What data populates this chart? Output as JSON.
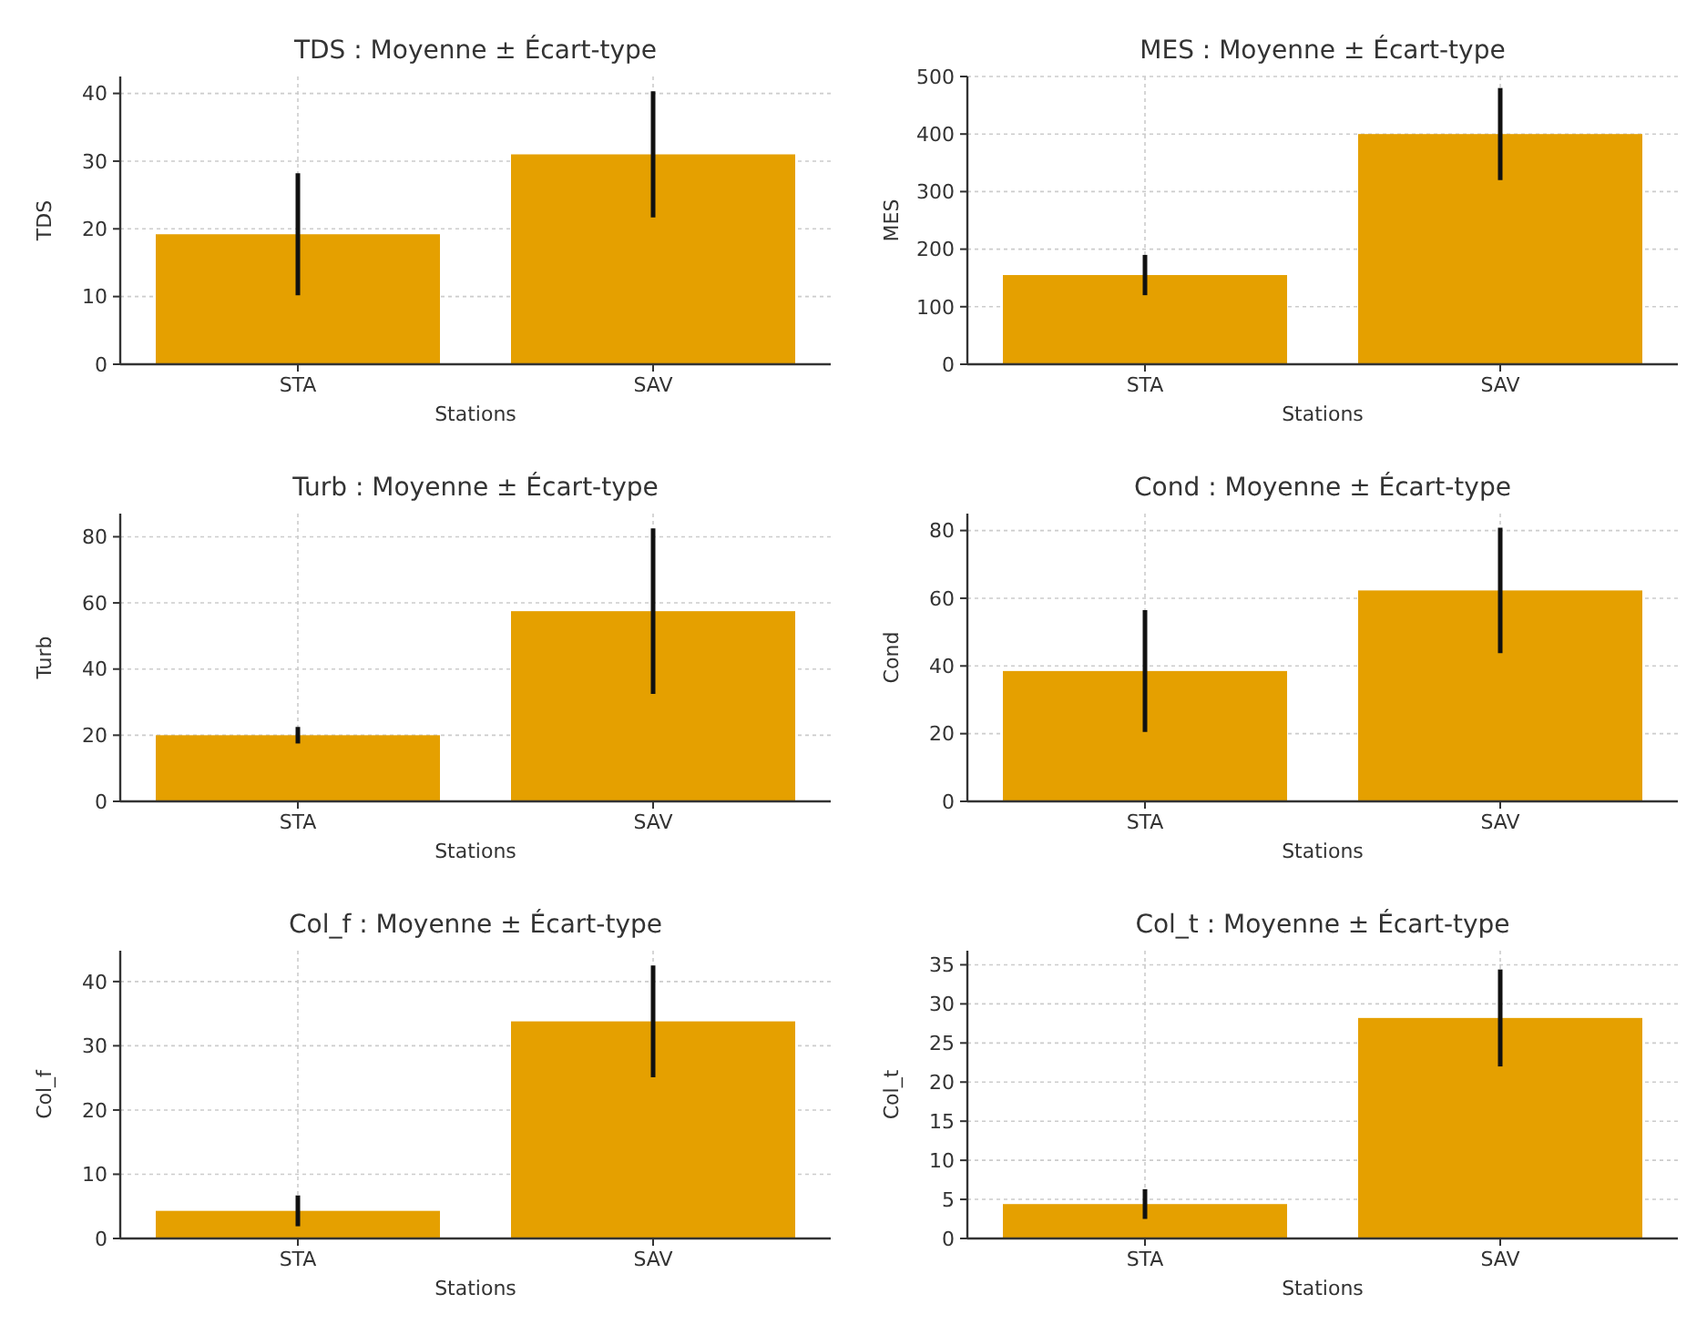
{
  "chart_data": [
    {
      "type": "bar",
      "title": "TDS : Moyenne ± Écart-type",
      "xlabel": "Stations",
      "ylabel": "TDS",
      "categories": [
        "STA",
        "SAV"
      ],
      "values": [
        19.2,
        31
      ],
      "errors": [
        9,
        9.3
      ],
      "color": "#e5a000",
      "ylim": [
        0,
        42.5
      ],
      "yticks": [
        0,
        10,
        20,
        30,
        40
      ],
      "grid": true
    },
    {
      "type": "bar",
      "title": "MES : Moyenne ± Écart-type",
      "xlabel": "Stations",
      "ylabel": "MES",
      "categories": [
        "STA",
        "SAV"
      ],
      "values": [
        155,
        400
      ],
      "errors": [
        35,
        80
      ],
      "color": "#e5a000",
      "ylim": [
        0,
        500
      ],
      "yticks": [
        0,
        100,
        200,
        300,
        400,
        500
      ],
      "grid": true
    },
    {
      "type": "bar",
      "title": "Turb : Moyenne ± Écart-type",
      "xlabel": "Stations",
      "ylabel": "Turb",
      "categories": [
        "STA",
        "SAV"
      ],
      "values": [
        20,
        57.5
      ],
      "errors": [
        2.5,
        25
      ],
      "color": "#e5a000",
      "ylim": [
        0,
        87
      ],
      "yticks": [
        0,
        20,
        40,
        60,
        80
      ],
      "grid": true
    },
    {
      "type": "bar",
      "title": "Cond : Moyenne ± Écart-type",
      "xlabel": "Stations",
      "ylabel": "Cond",
      "categories": [
        "STA",
        "SAV"
      ],
      "values": [
        38.5,
        62.3
      ],
      "errors": [
        18,
        18.5
      ],
      "color": "#e5a000",
      "ylim": [
        0,
        85
      ],
      "yticks": [
        0,
        20,
        40,
        60,
        80
      ],
      "grid": true
    },
    {
      "type": "bar",
      "title": "Col_f : Moyenne ± Écart-type",
      "xlabel": "Stations",
      "ylabel": "Col_f",
      "categories": [
        "STA",
        "SAV"
      ],
      "values": [
        4.3,
        33.8
      ],
      "errors": [
        2.4,
        8.7
      ],
      "color": "#e5a000",
      "ylim": [
        0,
        44.8
      ],
      "yticks": [
        0,
        10,
        20,
        30,
        40
      ],
      "grid": true
    },
    {
      "type": "bar",
      "title": "Col_t : Moyenne ± Écart-type",
      "xlabel": "Stations",
      "ylabel": "Col_t",
      "categories": [
        "STA",
        "SAV"
      ],
      "values": [
        4.4,
        28.2
      ],
      "errors": [
        1.9,
        6.2
      ],
      "color": "#e5a000",
      "ylim": [
        0,
        36.8
      ],
      "yticks": [
        0,
        5,
        10,
        15,
        20,
        25,
        30,
        35
      ],
      "grid": true
    }
  ]
}
